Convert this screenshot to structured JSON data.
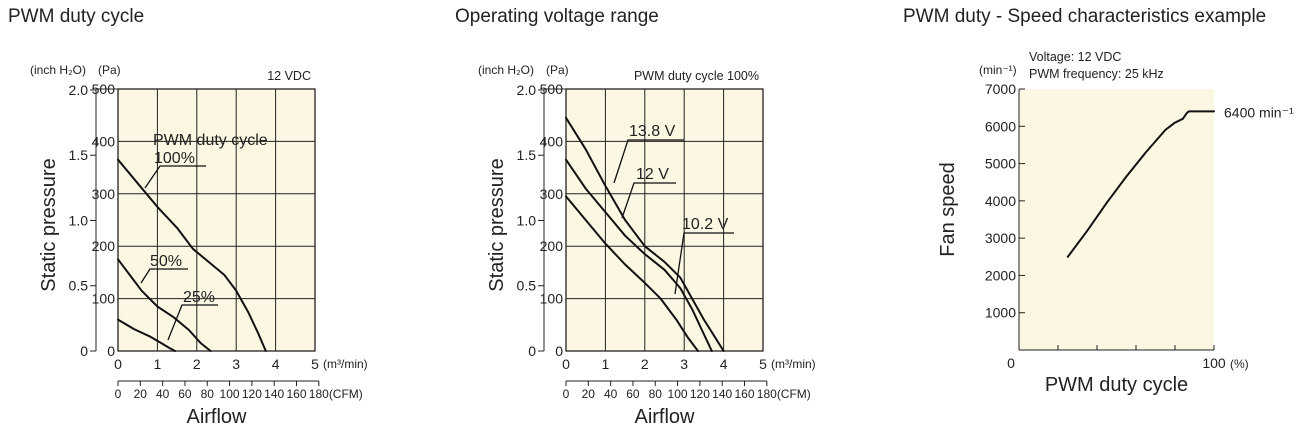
{
  "chart_data": [
    {
      "type": "line",
      "title": "PWM duty cycle",
      "condition": "12 VDC",
      "ylabel": "Static pressure",
      "xlabel": "Airflow",
      "y_units": [
        "(inch H₂O)",
        "(Pa)"
      ],
      "x_units": [
        "(m³/min)",
        "(CFM)"
      ],
      "x_ticks_m3": [
        "0",
        "1",
        "2",
        "3",
        "4",
        "5"
      ],
      "x_ticks_cfm": [
        "0",
        "20",
        "40",
        "60",
        "80",
        "100",
        "120",
        "140",
        "160",
        "180"
      ],
      "y_ticks_pa": [
        "0",
        "100",
        "200",
        "300",
        "400",
        "500"
      ],
      "y_ticks_inch": [
        "0",
        "0.5",
        "1.0",
        "1.5",
        "2.0"
      ],
      "xlim": [
        0,
        5
      ],
      "ylim": [
        0,
        500
      ],
      "legend_title": "PWM duty cycle",
      "series": [
        {
          "name": "100%",
          "x": [
            0,
            0.5,
            1.0,
            1.5,
            1.9,
            2.3,
            2.7,
            3.0,
            3.3,
            3.55,
            3.75
          ],
          "y": [
            365,
            320,
            275,
            235,
            195,
            170,
            145,
            115,
            75,
            35,
            0
          ]
        },
        {
          "name": "50%",
          "x": [
            0,
            0.3,
            0.6,
            1.0,
            1.4,
            1.8,
            2.1,
            2.35
          ],
          "y": [
            175,
            145,
            115,
            85,
            65,
            40,
            15,
            0
          ]
        },
        {
          "name": "25%",
          "x": [
            0,
            0.4,
            0.8,
            1.1,
            1.3,
            1.45
          ],
          "y": [
            60,
            42,
            28,
            15,
            6,
            0
          ]
        }
      ]
    },
    {
      "type": "line",
      "title": "Operating voltage range",
      "condition": "PWM duty cycle 100%",
      "ylabel": "Static pressure",
      "xlabel": "Airflow",
      "y_units": [
        "(inch H₂O)",
        "(Pa)"
      ],
      "x_units": [
        "(m³/min)",
        "(CFM)"
      ],
      "x_ticks_m3": [
        "0",
        "1",
        "2",
        "3",
        "4",
        "5"
      ],
      "x_ticks_cfm": [
        "0",
        "20",
        "40",
        "60",
        "80",
        "100",
        "120",
        "140",
        "160",
        "180"
      ],
      "y_ticks_pa": [
        "0",
        "100",
        "200",
        "300",
        "400",
        "500"
      ],
      "y_ticks_inch": [
        "0",
        "0.5",
        "1.0",
        "1.5",
        "2.0"
      ],
      "xlim": [
        0,
        5
      ],
      "ylim": [
        0,
        500
      ],
      "series": [
        {
          "name": "13.8 V",
          "x": [
            0,
            0.5,
            1.0,
            1.5,
            2.0,
            2.5,
            2.9,
            3.2,
            3.5,
            3.75,
            4.0
          ],
          "y": [
            445,
            385,
            315,
            250,
            200,
            170,
            140,
            100,
            60,
            30,
            0
          ]
        },
        {
          "name": "12 V",
          "x": [
            0,
            0.5,
            1.0,
            1.5,
            2.0,
            2.5,
            2.9,
            3.2,
            3.45,
            3.7
          ],
          "y": [
            365,
            310,
            265,
            220,
            185,
            155,
            120,
            80,
            40,
            0
          ]
        },
        {
          "name": "10.2 V",
          "x": [
            0,
            0.5,
            1.0,
            1.5,
            2.0,
            2.4,
            2.8,
            3.1,
            3.35
          ],
          "y": [
            295,
            250,
            205,
            165,
            130,
            100,
            60,
            25,
            0
          ]
        }
      ]
    },
    {
      "type": "line",
      "title": "PWM duty - Speed characteristics example",
      "conditions": [
        "Voltage: 12 VDC",
        "PWM frequency: 25 kHz"
      ],
      "ylabel": "Fan speed",
      "xlabel": "PWM duty cycle",
      "y_unit": "(min⁻¹)",
      "x_unit": "(%)",
      "x_ticks": [
        "0",
        "100"
      ],
      "y_ticks": [
        "1000",
        "2000",
        "3000",
        "4000",
        "5000",
        "6000",
        "7000"
      ],
      "xlim": [
        0,
        100
      ],
      "ylim": [
        0,
        7000
      ],
      "annotation": "6400 min⁻¹",
      "series": [
        {
          "name": "",
          "x": [
            25,
            35,
            45,
            55,
            65,
            75,
            80,
            84,
            86,
            87,
            100
          ],
          "y": [
            2500,
            3200,
            3950,
            4650,
            5300,
            5900,
            6100,
            6200,
            6350,
            6400,
            6400
          ]
        }
      ]
    }
  ]
}
